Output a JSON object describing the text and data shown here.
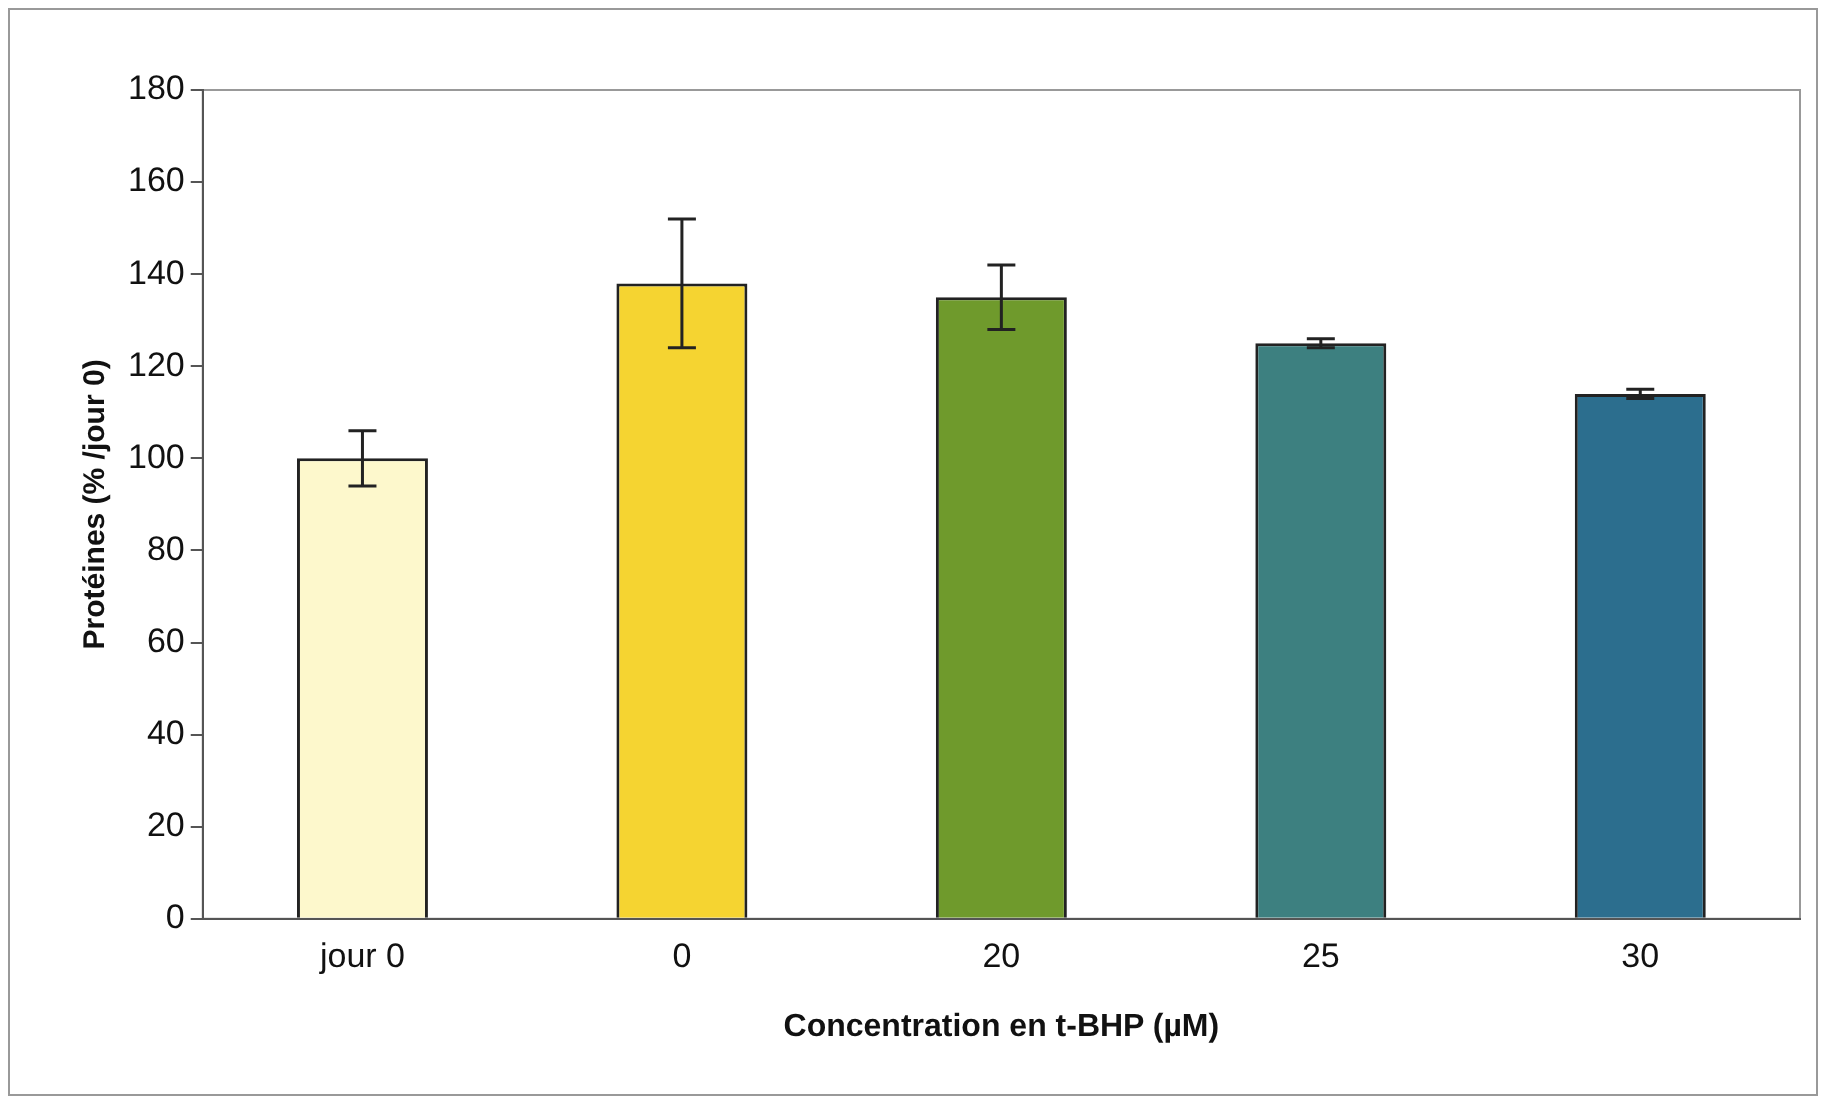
{
  "chart_data": {
    "type": "bar",
    "xlabel": "Concentration en t-BHP (µM)",
    "ylabel": "Protéines (% /jour 0)",
    "categories": [
      "jour 0",
      "0",
      "20",
      "25",
      "30"
    ],
    "values": [
      100,
      138,
      135,
      125,
      114
    ],
    "errors": [
      6,
      14,
      7,
      1,
      1
    ],
    "colors": [
      "#fdf8cc",
      "#f5d431",
      "#6f9a2c",
      "#3d8080",
      "#2c6e8e"
    ],
    "ylim": [
      0,
      180
    ],
    "yticks": [
      0,
      20,
      40,
      60,
      80,
      100,
      120,
      140,
      160,
      180
    ],
    "grid": false,
    "legend": false
  }
}
